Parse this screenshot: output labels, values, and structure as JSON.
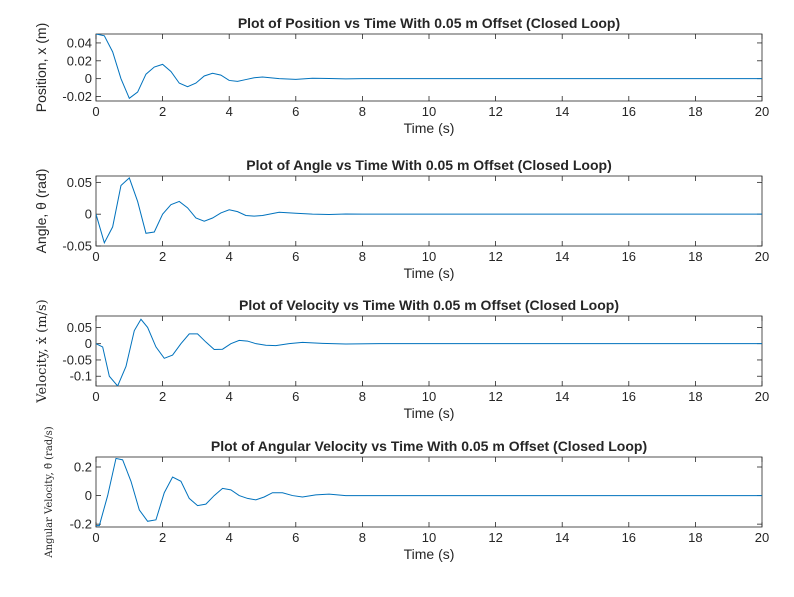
{
  "chart_data": [
    {
      "type": "line",
      "title": "Plot of Position vs Time With 0.05 m Offset (Closed Loop)",
      "xlabel": "Time (s)",
      "ylabel": "Position, x (m)",
      "xlim": [
        0,
        20
      ],
      "ylim": [
        -0.025,
        0.05
      ],
      "xticks": [
        "0",
        "2",
        "4",
        "6",
        "8",
        "10",
        "12",
        "14",
        "16",
        "18",
        "20"
      ],
      "yticks": [
        {
          "v": 0.04,
          "label": "0.04"
        },
        {
          "v": 0.02,
          "label": "0.02"
        },
        {
          "v": 0,
          "label": "0"
        },
        {
          "v": -0.02,
          "label": "-0.02"
        }
      ],
      "color": "#0072BD",
      "series": [
        {
          "x": [
            0,
            0.25,
            0.5,
            0.75,
            1.0,
            1.25,
            1.5,
            1.75,
            2.0,
            2.25,
            2.5,
            2.75,
            3.0,
            3.25,
            3.5,
            3.75,
            4.0,
            4.25,
            4.5,
            4.75,
            5.0,
            5.5,
            6.0,
            6.5,
            7.0,
            7.5,
            8.0,
            9.0,
            10.0,
            12.0,
            14.0,
            16.0,
            18.0,
            20.0
          ],
          "y": [
            0.05,
            0.048,
            0.03,
            0.0,
            -0.022,
            -0.015,
            0.005,
            0.013,
            0.016,
            0.008,
            -0.005,
            -0.009,
            -0.005,
            0.003,
            0.006,
            0.004,
            -0.002,
            -0.003,
            -0.001,
            0.001,
            0.0018,
            0.0,
            -0.0008,
            0.0004,
            0.0002,
            -0.0002,
            0.0001,
            0.0,
            0.0,
            0.0,
            0.0,
            0.0,
            0.0,
            0.0
          ]
        }
      ]
    },
    {
      "type": "line",
      "title": "Plot of Angle vs Time With 0.05 m Offset (Closed Loop)",
      "xlabel": "Time (s)",
      "ylabel": "Angle, θ (rad)",
      "xlim": [
        0,
        20
      ],
      "ylim": [
        -0.05,
        0.06
      ],
      "xticks": [
        "0",
        "2",
        "4",
        "6",
        "8",
        "10",
        "12",
        "14",
        "16",
        "18",
        "20"
      ],
      "yticks": [
        {
          "v": 0.05,
          "label": "0.05"
        },
        {
          "v": 0,
          "label": "0"
        },
        {
          "v": -0.05,
          "label": "-0.05"
        }
      ],
      "color": "#0072BD",
      "series": [
        {
          "x": [
            0,
            0.25,
            0.5,
            0.75,
            1.0,
            1.25,
            1.5,
            1.75,
            2.0,
            2.25,
            2.5,
            2.75,
            3.0,
            3.25,
            3.5,
            3.75,
            4.0,
            4.25,
            4.5,
            4.75,
            5.0,
            5.5,
            6.0,
            6.5,
            7.0,
            7.5,
            8.0,
            9.0,
            10.0,
            12.0,
            14.0,
            16.0,
            18.0,
            20.0
          ],
          "y": [
            0.0,
            -0.045,
            -0.02,
            0.045,
            0.057,
            0.02,
            -0.03,
            -0.028,
            0.0,
            0.015,
            0.02,
            0.01,
            -0.006,
            -0.011,
            -0.006,
            0.002,
            0.007,
            0.004,
            -0.002,
            -0.003,
            -0.002,
            0.003,
            0.0015,
            0.0,
            -0.0005,
            0.0003,
            0.0,
            0.0,
            0.0,
            0.0,
            0.0,
            0.0,
            0.0,
            0.0
          ]
        }
      ]
    },
    {
      "type": "line",
      "title": "Plot of Velocity vs Time With 0.05 m Offset (Closed Loop)",
      "xlabel": "Time (s)",
      "ylabel": "Velocity, ẋ (m/s)",
      "xlim": [
        0,
        20
      ],
      "ylim": [
        -0.13,
        0.085
      ],
      "xticks": [
        "0",
        "2",
        "4",
        "6",
        "8",
        "10",
        "12",
        "14",
        "16",
        "18",
        "20"
      ],
      "yticks": [
        {
          "v": 0.05,
          "label": "0.05"
        },
        {
          "v": 0,
          "label": "0"
        },
        {
          "v": -0.05,
          "label": "-0.05"
        },
        {
          "v": -0.1,
          "label": "-0.1"
        }
      ],
      "color": "#0072BD",
      "series": [
        {
          "x": [
            0,
            0.2,
            0.4,
            0.65,
            0.9,
            1.15,
            1.35,
            1.55,
            1.8,
            2.05,
            2.3,
            2.55,
            2.8,
            3.05,
            3.3,
            3.55,
            3.8,
            4.05,
            4.3,
            4.55,
            4.8,
            5.1,
            5.4,
            5.8,
            6.2,
            6.8,
            7.5,
            8.5,
            10.0,
            12.0,
            14.0,
            16.0,
            18.0,
            20.0
          ],
          "y": [
            0.0,
            -0.01,
            -0.1,
            -0.13,
            -0.07,
            0.04,
            0.075,
            0.05,
            -0.01,
            -0.045,
            -0.035,
            0.0,
            0.03,
            0.03,
            0.005,
            -0.018,
            -0.017,
            0.0,
            0.01,
            0.008,
            0.0,
            -0.005,
            -0.006,
            0.0,
            0.004,
            0.001,
            -0.001,
            0.0,
            0.0,
            0.0,
            0.0,
            0.0,
            0.0,
            0.0
          ]
        }
      ]
    },
    {
      "type": "line",
      "title": "Plot of Angular Velocity vs Time With 0.05 m Offset (Closed Loop)",
      "xlabel": "Time (s)",
      "ylabel": "Angular Velocity, θ̇ (rad/s)",
      "xlim": [
        0,
        20
      ],
      "ylim": [
        -0.22,
        0.27
      ],
      "xticks": [
        "0",
        "2",
        "4",
        "6",
        "8",
        "10",
        "12",
        "14",
        "16",
        "18",
        "20"
      ],
      "yticks": [
        {
          "v": 0.2,
          "label": "0.2"
        },
        {
          "v": 0,
          "label": "0"
        },
        {
          "v": -0.2,
          "label": "-0.2"
        }
      ],
      "color": "#0072BD",
      "series": [
        {
          "x": [
            0,
            0.1,
            0.35,
            0.6,
            0.8,
            1.05,
            1.3,
            1.55,
            1.8,
            2.05,
            2.3,
            2.55,
            2.8,
            3.05,
            3.3,
            3.55,
            3.8,
            4.05,
            4.3,
            4.55,
            4.8,
            5.05,
            5.3,
            5.6,
            5.9,
            6.2,
            6.6,
            7.0,
            7.5,
            8.0,
            9.0,
            10.0,
            12.0,
            14.0,
            16.0,
            18.0,
            20.0
          ],
          "y": [
            -0.21,
            -0.21,
            0.0,
            0.26,
            0.25,
            0.1,
            -0.1,
            -0.18,
            -0.17,
            0.02,
            0.13,
            0.1,
            -0.02,
            -0.07,
            -0.06,
            0.0,
            0.05,
            0.04,
            0.0,
            -0.02,
            -0.03,
            -0.01,
            0.02,
            0.02,
            0.0,
            -0.01,
            0.005,
            0.01,
            0.0,
            0.0,
            0.0,
            0.0,
            0.0,
            0.0,
            0.0,
            0.0,
            0.0
          ]
        }
      ]
    }
  ]
}
